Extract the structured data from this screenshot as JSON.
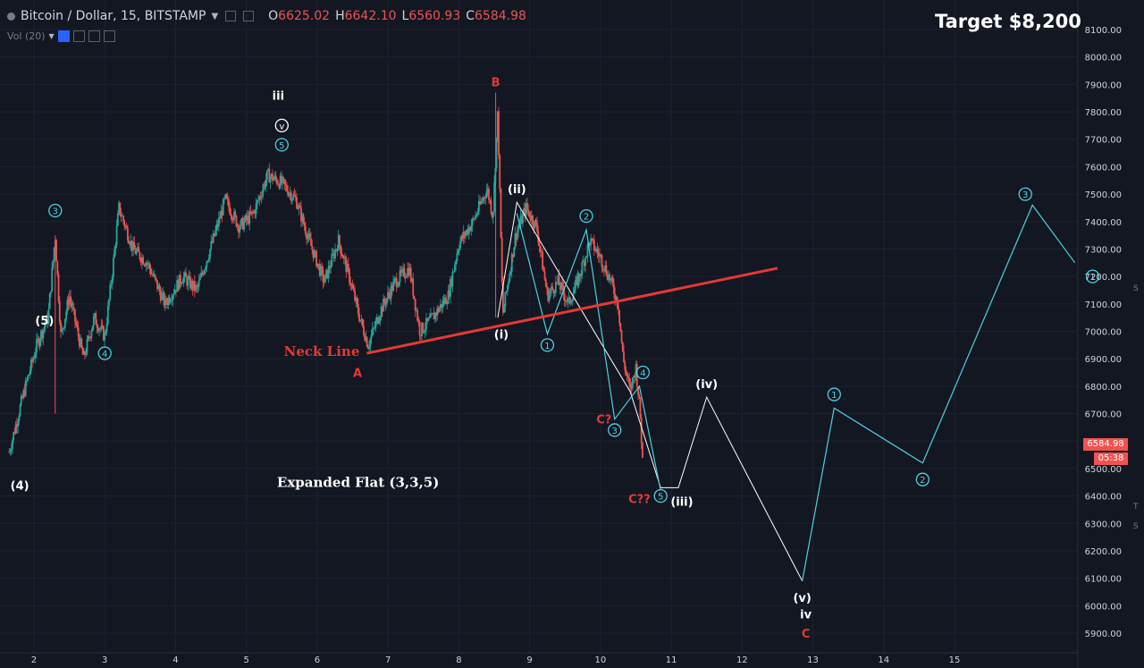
{
  "header": {
    "symbol": "Bitcoin / Dollar, 15, BITSTAMP",
    "ohlc": [
      {
        "k": "O",
        "v": "6625.02"
      },
      {
        "k": "H",
        "v": "6642.10"
      },
      {
        "k": "L",
        "v": "6560.93"
      },
      {
        "k": "C",
        "v": "6584.98"
      }
    ],
    "vol_label": "Vol (20)"
  },
  "target_label": "Target $8,200",
  "last_price": "6584.98",
  "countdown": "05:38",
  "side_letters": [
    "S",
    "T",
    "S"
  ],
  "colors": {
    "background": "#131722",
    "grid": "#1e2230",
    "up": "#26a69a",
    "down": "#ef5350",
    "neckline": "#e53935",
    "wave_cyan": "#4dd0e1",
    "wave_white": "#ffffff",
    "label_red": "#e53935"
  },
  "chart_data": {
    "type": "candlestick",
    "title": "Bitcoin / Dollar, 15, BITSTAMP",
    "ylim": [
      5850,
      8150
    ],
    "y_ticks": [
      5900,
      6000,
      6100,
      6200,
      6300,
      6400,
      6500,
      6600,
      6700,
      6800,
      6900,
      7000,
      7100,
      7200,
      7300,
      7400,
      7500,
      7600,
      7700,
      7800,
      7900,
      8000,
      8100
    ],
    "y_tick_labels": [
      "5900.00",
      "6000.00",
      "6100.00",
      "6200.00",
      "6300.00",
      "6400.00",
      "6500.00",
      "6600.00",
      "6700.00",
      "6800.00",
      "6900.00",
      "7000.00",
      "7100.00",
      "7200.00",
      "7300.00",
      "7400.00",
      "7500.00",
      "7600.00",
      "7700.00",
      "7800.00",
      "7900.00",
      "8000.00",
      "8100.00"
    ],
    "xlim": [
      1.6,
      16.9
    ],
    "x_ticks": [
      2,
      3,
      4,
      5,
      6,
      7,
      8,
      9,
      10,
      11,
      12,
      13,
      14,
      15
    ],
    "x_tick_labels": [
      "2",
      "3",
      "4",
      "5",
      "6",
      "7",
      "8",
      "9",
      "10",
      "11",
      "12",
      "13",
      "14",
      "15"
    ],
    "price_path": [
      [
        1.65,
        6560
      ],
      [
        1.85,
        6770
      ],
      [
        2.05,
        6960
      ],
      [
        2.2,
        7050
      ],
      [
        2.3,
        7350
      ],
      [
        2.38,
        6980
      ],
      [
        2.5,
        7130
      ],
      [
        2.7,
        6900
      ],
      [
        2.85,
        7050
      ],
      [
        3.0,
        6980
      ],
      [
        3.1,
        7200
      ],
      [
        3.2,
        7450
      ],
      [
        3.4,
        7300
      ],
      [
        3.6,
        7250
      ],
      [
        3.85,
        7100
      ],
      [
        4.1,
        7200
      ],
      [
        4.3,
        7150
      ],
      [
        4.55,
        7350
      ],
      [
        4.7,
        7480
      ],
      [
        4.9,
        7380
      ],
      [
        5.1,
        7430
      ],
      [
        5.3,
        7570
      ],
      [
        5.5,
        7540
      ],
      [
        5.7,
        7480
      ],
      [
        5.9,
        7320
      ],
      [
        6.1,
        7180
      ],
      [
        6.3,
        7330
      ],
      [
        6.45,
        7200
      ],
      [
        6.6,
        7050
      ],
      [
        6.72,
        6950
      ],
      [
        6.9,
        7080
      ],
      [
        7.1,
        7180
      ],
      [
        7.3,
        7230
      ],
      [
        7.45,
        7000
      ],
      [
        7.6,
        7040
      ],
      [
        7.85,
        7130
      ],
      [
        8.0,
        7320
      ],
      [
        8.2,
        7400
      ],
      [
        8.4,
        7520
      ],
      [
        8.48,
        7420
      ],
      [
        8.55,
        7800
      ],
      [
        8.62,
        7060
      ],
      [
        8.8,
        7350
      ],
      [
        8.95,
        7450
      ],
      [
        9.1,
        7380
      ],
      [
        9.25,
        7130
      ],
      [
        9.4,
        7180
      ],
      [
        9.55,
        7100
      ],
      [
        9.7,
        7200
      ],
      [
        9.85,
        7330
      ],
      [
        10.0,
        7270
      ],
      [
        10.15,
        7180
      ],
      [
        10.25,
        7100
      ],
      [
        10.32,
        6900
      ],
      [
        10.42,
        6780
      ],
      [
        10.5,
        6870
      ],
      [
        10.56,
        6700
      ],
      [
        10.6,
        6500
      ]
    ],
    "neckline": {
      "from": [
        6.7,
        6920
      ],
      "to": [
        12.5,
        7230
      ],
      "label": "Neck Line"
    },
    "white_projection": [
      [
        8.55,
        7050
      ],
      [
        8.82,
        7470
      ],
      [
        10.42,
        6780
      ],
      [
        10.85,
        6430
      ],
      [
        11.1,
        6430
      ],
      [
        11.5,
        6760
      ],
      [
        12.85,
        6090
      ]
    ],
    "cyan_path_1": [
      [
        8.82,
        7430
      ],
      [
        9.25,
        6990
      ],
      [
        9.8,
        7370
      ],
      [
        10.2,
        6680
      ],
      [
        10.55,
        6800
      ],
      [
        10.85,
        6420
      ]
    ],
    "cyan_projection": [
      [
        12.85,
        6090
      ],
      [
        13.3,
        6720
      ],
      [
        14.55,
        6520
      ],
      [
        16.1,
        7460
      ],
      [
        16.7,
        7250
      ]
    ],
    "labels": [
      {
        "text": "iii",
        "x": 5.45,
        "y": 7860,
        "color": "white",
        "circle": false
      },
      {
        "text": "v",
        "x": 5.5,
        "y": 7750,
        "color": "white",
        "circle": true
      },
      {
        "text": "5",
        "x": 5.5,
        "y": 7680,
        "color": "cyan",
        "circle": true
      },
      {
        "text": "3",
        "x": 2.3,
        "y": 7440,
        "color": "cyan",
        "circle": true
      },
      {
        "text": "(5)",
        "x": 2.15,
        "y": 7040,
        "color": "white",
        "circle": false
      },
      {
        "text": "4",
        "x": 3.0,
        "y": 6920,
        "color": "cyan",
        "circle": true
      },
      {
        "text": "(4)",
        "x": 1.8,
        "y": 6440,
        "color": "white",
        "circle": false
      },
      {
        "text": "B",
        "x": 8.52,
        "y": 7910,
        "color": "red",
        "circle": false
      },
      {
        "text": "(ii)",
        "x": 8.82,
        "y": 7520,
        "color": "white",
        "circle": false
      },
      {
        "text": "(i)",
        "x": 8.6,
        "y": 6990,
        "color": "white",
        "circle": false
      },
      {
        "text": "1",
        "x": 9.25,
        "y": 6950,
        "color": "cyan",
        "circle": true
      },
      {
        "text": "2",
        "x": 9.8,
        "y": 7420,
        "color": "cyan",
        "circle": true
      },
      {
        "text": "4",
        "x": 10.6,
        "y": 6850,
        "color": "cyan",
        "circle": true
      },
      {
        "text": "3",
        "x": 10.2,
        "y": 6640,
        "color": "cyan",
        "circle": true
      },
      {
        "text": "5",
        "x": 10.85,
        "y": 6400,
        "color": "cyan",
        "circle": true
      },
      {
        "text": "C?",
        "x": 10.05,
        "y": 6680,
        "color": "red",
        "circle": false
      },
      {
        "text": "C??",
        "x": 10.55,
        "y": 6390,
        "color": "red",
        "circle": false
      },
      {
        "text": "(iii)",
        "x": 11.15,
        "y": 6380,
        "color": "white",
        "circle": false
      },
      {
        "text": "(iv)",
        "x": 11.5,
        "y": 6810,
        "color": "white",
        "circle": false
      },
      {
        "text": "(v)",
        "x": 12.85,
        "y": 6030,
        "color": "white",
        "circle": false
      },
      {
        "text": "iv",
        "x": 12.9,
        "y": 5970,
        "color": "white",
        "circle": false
      },
      {
        "text": "C",
        "x": 12.9,
        "y": 5900,
        "color": "red",
        "circle": false
      },
      {
        "text": "A",
        "x": 6.57,
        "y": 6850,
        "color": "red",
        "circle": false
      },
      {
        "text": "1",
        "x": 13.3,
        "y": 6770,
        "color": "cyan",
        "circle": true
      },
      {
        "text": "2",
        "x": 14.55,
        "y": 6460,
        "color": "cyan",
        "circle": true
      },
      {
        "text": "3",
        "x": 16.0,
        "y": 7500,
        "color": "cyan",
        "circle": true
      },
      {
        "text": "1",
        "x": 16.95,
        "y": 7200,
        "color": "cyan",
        "circle": true
      }
    ],
    "annotation": {
      "text": "Expanded Flat (3,3,5)",
      "x": 6.0,
      "y": 6450
    }
  }
}
